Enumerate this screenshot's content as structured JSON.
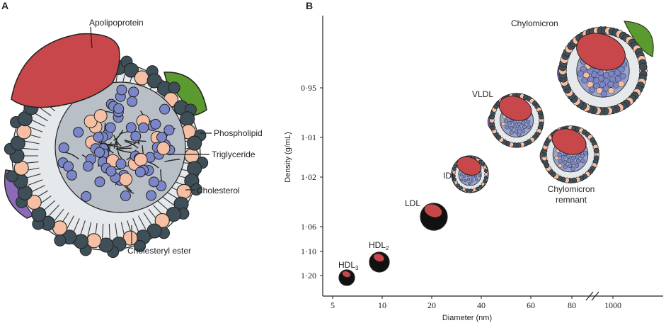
{
  "panel_a": {
    "label": "A",
    "labels": {
      "apolipoprotein": "Apolipoprotein",
      "phospholipid": "Phospholipid",
      "triglyceride": "Triglyceride",
      "cholesterol": "Cholesterol",
      "cholesteryl_ester": "Cholesteryl ester"
    }
  },
  "panel_b": {
    "label": "B",
    "particles": [
      {
        "name": "HDL",
        "sub": "3"
      },
      {
        "name": "HDL",
        "sub": "2"
      },
      {
        "name": "LDL"
      },
      {
        "name": "IDL"
      },
      {
        "name": "VLDL"
      },
      {
        "name": "Chylomicron"
      },
      {
        "name": "Chylomicron",
        "name2": "remnant"
      }
    ]
  },
  "chart_data": {
    "type": "scatter",
    "xlabel": "Diameter (nm)",
    "ylabel": "Density (g/mL)",
    "x_ticks": [
      "5",
      "10",
      "20",
      "40",
      "60",
      "80",
      "1000"
    ],
    "y_ticks": [
      "0·95",
      "1·01",
      "1·02",
      "1·06",
      "1·10",
      "1·20"
    ],
    "axis_break": "x between 80 and 1000",
    "colors": {
      "apolipoprotein": "#c8474a",
      "phospholipid_head": "#3f4f57",
      "cholesterol": "#f6bfa3",
      "core_ester": "#7b86c8",
      "green_protein": "#5b9a2e",
      "purple_protein": "#8d6ab8"
    }
  }
}
